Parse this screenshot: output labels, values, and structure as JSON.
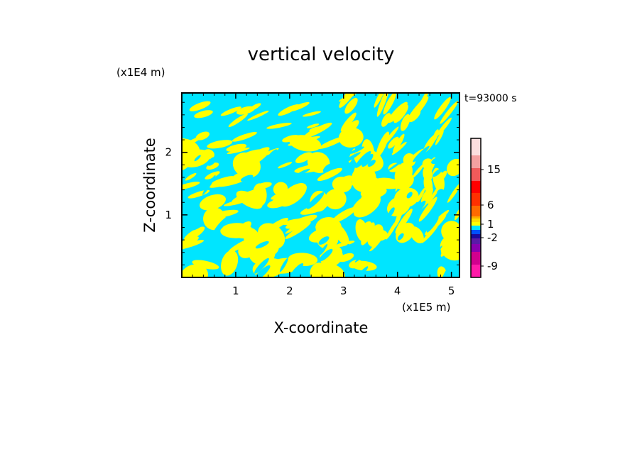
{
  "chart_data": {
    "type": "heatmap",
    "title": "vertical velocity",
    "xlabel": "X-coordinate",
    "ylabel": "Z-coordinate",
    "x_unit": "(x1E5 m)",
    "y_unit": "(x1E4 m)",
    "time_label": "t=93000 s",
    "xlim": [
      0,
      5.15
    ],
    "ylim": [
      0,
      2.95
    ],
    "x_ticks": [
      1,
      2,
      3,
      4,
      5
    ],
    "x_tick_labels": [
      "1",
      "2",
      "3",
      "4",
      "5"
    ],
    "y_ticks": [
      1,
      2
    ],
    "y_tick_labels": [
      "1",
      "2"
    ],
    "field_colors": {
      "positive": "#ffff00",
      "negative": "#00e5ff"
    },
    "colorbar": {
      "levels": [
        {
          "color": "#ff1aa8"
        },
        {
          "color": "#d1008e"
        },
        {
          "color": "#8a00b0"
        },
        {
          "color": "#5a1aa8"
        },
        {
          "color": "#1a0aa0"
        },
        {
          "color": "#0050ff"
        },
        {
          "color": "#00e5ff"
        },
        {
          "color": "#ffff00"
        },
        {
          "color": "#ffdd00"
        },
        {
          "color": "#ffaa00"
        },
        {
          "color": "#ff6a00"
        },
        {
          "color": "#ff3000"
        },
        {
          "color": "#ff0000"
        },
        {
          "color": "#f05a5a"
        },
        {
          "color": "#f4a0a0"
        },
        {
          "color": "#fbdede"
        }
      ],
      "labels": [
        "15",
        "6",
        "1",
        "-2",
        "-9"
      ]
    }
  }
}
